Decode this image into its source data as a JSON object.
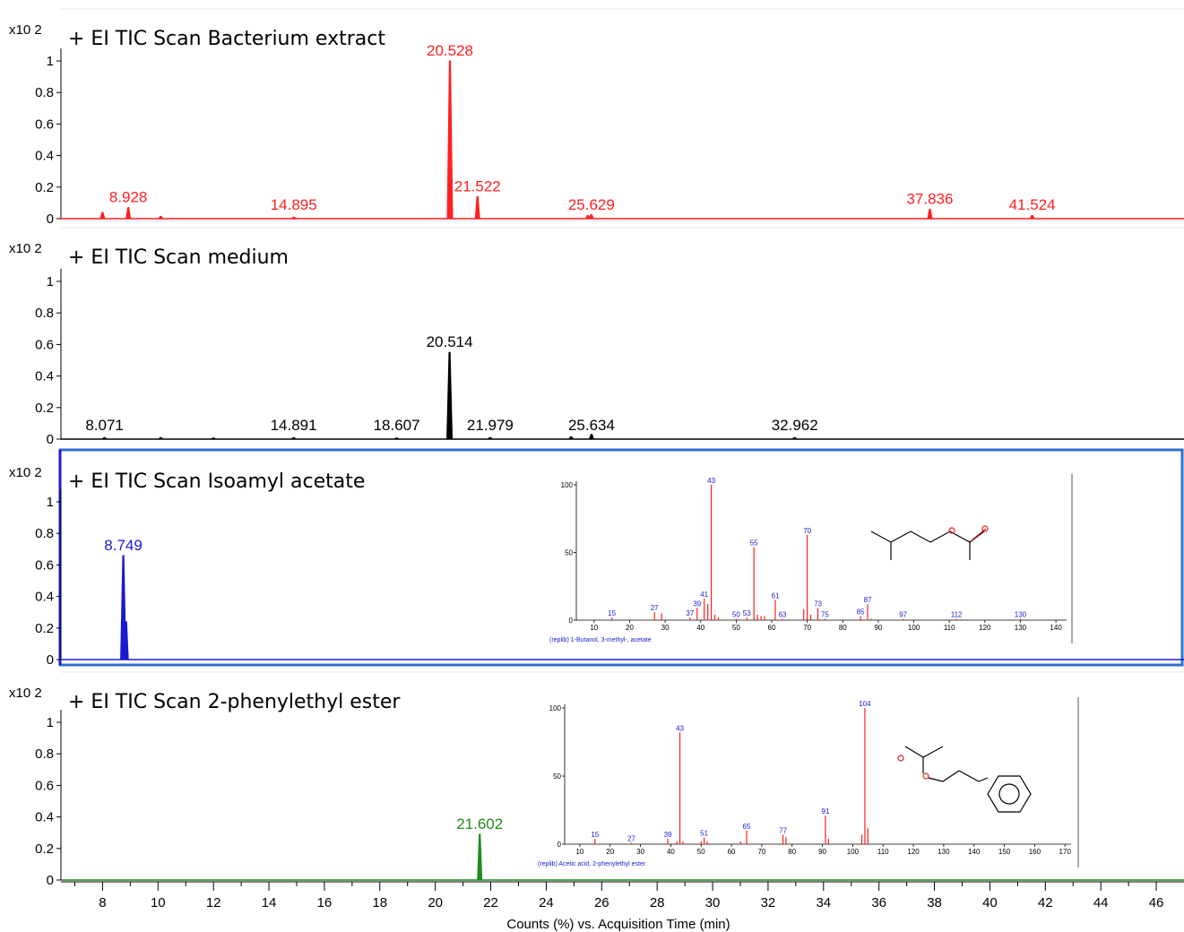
{
  "chart_data": [
    {
      "type": "line",
      "title": "+ EI TIC Scan Bacterium extract",
      "scale_label": "x10 2",
      "color": "#ff2020",
      "ylim": [
        0,
        1.05
      ],
      "yticks": [
        "1",
        "0.8",
        "0.6",
        "0.4",
        "0.2",
        "0"
      ],
      "peaks": [
        {
          "x": 8.0,
          "y": 0.04
        },
        {
          "x": 8.928,
          "y": 0.07
        },
        {
          "x": 10.1,
          "y": 0.015
        },
        {
          "x": 14.895,
          "y": 0.01
        },
        {
          "x": 20.528,
          "y": 1.0
        },
        {
          "x": 21.522,
          "y": 0.14
        },
        {
          "x": 25.5,
          "y": 0.02
        },
        {
          "x": 25.629,
          "y": 0.025
        },
        {
          "x": 37.836,
          "y": 0.06
        },
        {
          "x": 41.524,
          "y": 0.02
        }
      ],
      "labels": [
        {
          "text": "8.928",
          "x": 8.928,
          "y": 0.07
        },
        {
          "text": "14.895",
          "x": 14.895,
          "y": 0.01
        },
        {
          "text": "20.528",
          "x": 20.528,
          "y": 1.0
        },
        {
          "text": "21.522",
          "x": 21.522,
          "y": 0.14
        },
        {
          "text": "25.629",
          "x": 25.629,
          "y": 0.025
        },
        {
          "text": "37.836",
          "x": 37.836,
          "y": 0.06
        },
        {
          "text": "41.524",
          "x": 41.524,
          "y": 0.02
        }
      ]
    },
    {
      "type": "line",
      "title": "+ EI TIC Scan medium",
      "scale_label": "x10 2",
      "color": "#000000",
      "ylim": [
        0,
        1.05
      ],
      "yticks": [
        "1",
        "0.8",
        "0.6",
        "0.4",
        "0.2",
        "0"
      ],
      "peaks": [
        {
          "x": 8.071,
          "y": 0.01
        },
        {
          "x": 10.1,
          "y": 0.01
        },
        {
          "x": 12.0,
          "y": 0.008
        },
        {
          "x": 14.891,
          "y": 0.01
        },
        {
          "x": 18.607,
          "y": 0.008
        },
        {
          "x": 20.514,
          "y": 0.55
        },
        {
          "x": 21.979,
          "y": 0.01
        },
        {
          "x": 24.9,
          "y": 0.015
        },
        {
          "x": 25.634,
          "y": 0.03
        },
        {
          "x": 32.962,
          "y": 0.01
        }
      ],
      "labels": [
        {
          "text": "8.071",
          "x": 8.071,
          "y": 0.01
        },
        {
          "text": "14.891",
          "x": 14.891,
          "y": 0.01
        },
        {
          "text": "18.607",
          "x": 18.607,
          "y": 0.008
        },
        {
          "text": "20.514",
          "x": 20.514,
          "y": 0.55
        },
        {
          "text": "21.979",
          "x": 21.979,
          "y": 0.01
        },
        {
          "text": "25.634",
          "x": 25.634,
          "y": 0.03
        },
        {
          "text": "32.962",
          "x": 32.962,
          "y": 0.01
        }
      ]
    },
    {
      "type": "line",
      "title": "+ EI TIC Scan  Isoamyl acetate",
      "scale_label": "x10 2",
      "color": "#1a1ad0",
      "ylim": [
        0,
        1.05
      ],
      "yticks": [
        "1",
        "0.8",
        "0.6",
        "0.4",
        "0.2",
        "0"
      ],
      "peaks": [
        {
          "x": 8.749,
          "y": 0.66
        },
        {
          "x": 8.85,
          "y": 0.24
        }
      ],
      "labels": [
        {
          "text": "8.749",
          "x": 8.749,
          "y": 0.66
        }
      ],
      "inset": {
        "type": "bar",
        "caption": "(replib) 1-Butanol, 3-methyl-, acetate",
        "xlim": [
          5,
          143
        ],
        "xticks": [
          "10",
          "20",
          "30",
          "40",
          "50",
          "60",
          "70",
          "80",
          "90",
          "100",
          "110",
          "120",
          "130",
          "140"
        ],
        "yticks": [
          "100",
          "50",
          "0"
        ],
        "bars": [
          {
            "mz": 15,
            "i": 2
          },
          {
            "mz": 27,
            "i": 6
          },
          {
            "mz": 29,
            "i": 5
          },
          {
            "mz": 37,
            "i": 2
          },
          {
            "mz": 39,
            "i": 9
          },
          {
            "mz": 41,
            "i": 16
          },
          {
            "mz": 42,
            "i": 12
          },
          {
            "mz": 43,
            "i": 100
          },
          {
            "mz": 44,
            "i": 4
          },
          {
            "mz": 45,
            "i": 2
          },
          {
            "mz": 50,
            "i": 1
          },
          {
            "mz": 53,
            "i": 2
          },
          {
            "mz": 55,
            "i": 54
          },
          {
            "mz": 56,
            "i": 4
          },
          {
            "mz": 57,
            "i": 3
          },
          {
            "mz": 58,
            "i": 3
          },
          {
            "mz": 61,
            "i": 15
          },
          {
            "mz": 63,
            "i": 1
          },
          {
            "mz": 69,
            "i": 8
          },
          {
            "mz": 70,
            "i": 63
          },
          {
            "mz": 71,
            "i": 4
          },
          {
            "mz": 73,
            "i": 9
          },
          {
            "mz": 75,
            "i": 1
          },
          {
            "mz": 85,
            "i": 3
          },
          {
            "mz": 87,
            "i": 12
          },
          {
            "mz": 88,
            "i": 1
          },
          {
            "mz": 97,
            "i": 1
          },
          {
            "mz": 112,
            "i": 1
          },
          {
            "mz": 130,
            "i": 1
          }
        ],
        "bar_labels": [
          {
            "text": "15",
            "mz": 15,
            "i": 2
          },
          {
            "text": "27",
            "mz": 27,
            "i": 6
          },
          {
            "text": "37",
            "mz": 37,
            "i": 2
          },
          {
            "text": "39",
            "mz": 39,
            "i": 9
          },
          {
            "text": "41",
            "mz": 41,
            "i": 16
          },
          {
            "text": "43",
            "mz": 43,
            "i": 100
          },
          {
            "text": "50",
            "mz": 50,
            "i": 1
          },
          {
            "text": "53",
            "mz": 53,
            "i": 2
          },
          {
            "text": "55",
            "mz": 55,
            "i": 54
          },
          {
            "text": "61",
            "mz": 61,
            "i": 15
          },
          {
            "text": "63",
            "mz": 63,
            "i": 1
          },
          {
            "text": "70",
            "mz": 70,
            "i": 63
          },
          {
            "text": "73",
            "mz": 73,
            "i": 9
          },
          {
            "text": "75",
            "mz": 75,
            "i": 1
          },
          {
            "text": "85",
            "mz": 85,
            "i": 3
          },
          {
            "text": "87",
            "mz": 87,
            "i": 12
          },
          {
            "text": "97",
            "mz": 97,
            "i": 1
          },
          {
            "text": "112",
            "mz": 112,
            "i": 1
          },
          {
            "text": "130",
            "mz": 130,
            "i": 1
          }
        ]
      }
    },
    {
      "type": "line",
      "title": "+ EI TIC Scan 2-phenylethyl ester",
      "scale_label": "x10 2",
      "color": "#1f8a1f",
      "ylim": [
        0,
        1.05
      ],
      "yticks": [
        "1",
        "0.8",
        "0.6",
        "0.4",
        "0.2",
        "0"
      ],
      "peaks": [
        {
          "x": 21.602,
          "y": 0.29
        }
      ],
      "labels": [
        {
          "text": "21.602",
          "x": 21.602,
          "y": 0.29
        }
      ],
      "inset": {
        "type": "bar",
        "caption": "(replib) Acetic acid, 2-phenylethyl ester",
        "xlim": [
          5,
          172
        ],
        "xticks": [
          "10",
          "20",
          "30",
          "40",
          "50",
          "60",
          "70",
          "80",
          "90",
          "100",
          "110",
          "120",
          "130",
          "140",
          "150",
          "160",
          "170"
        ],
        "yticks": [
          "100",
          "50",
          "0"
        ],
        "bars": [
          {
            "mz": 15,
            "i": 4
          },
          {
            "mz": 27,
            "i": 1
          },
          {
            "mz": 39,
            "i": 4
          },
          {
            "mz": 42,
            "i": 2
          },
          {
            "mz": 43,
            "i": 82
          },
          {
            "mz": 44,
            "i": 2
          },
          {
            "mz": 50,
            "i": 2
          },
          {
            "mz": 51,
            "i": 5
          },
          {
            "mz": 52,
            "i": 2
          },
          {
            "mz": 63,
            "i": 2
          },
          {
            "mz": 65,
            "i": 10
          },
          {
            "mz": 77,
            "i": 7
          },
          {
            "mz": 78,
            "i": 5
          },
          {
            "mz": 91,
            "i": 21
          },
          {
            "mz": 92,
            "i": 4
          },
          {
            "mz": 103,
            "i": 7
          },
          {
            "mz": 104,
            "i": 100
          },
          {
            "mz": 105,
            "i": 12
          }
        ],
        "bar_labels": [
          {
            "text": "15",
            "mz": 15,
            "i": 4
          },
          {
            "text": "27",
            "mz": 27,
            "i": 1
          },
          {
            "text": "39",
            "mz": 39,
            "i": 4
          },
          {
            "text": "43",
            "mz": 43,
            "i": 82
          },
          {
            "text": "51",
            "mz": 51,
            "i": 5
          },
          {
            "text": "65",
            "mz": 65,
            "i": 10
          },
          {
            "text": "77",
            "mz": 77,
            "i": 7
          },
          {
            "text": "91",
            "mz": 91,
            "i": 21
          },
          {
            "text": "104",
            "mz": 104,
            "i": 100
          }
        ]
      }
    }
  ],
  "shared_x": {
    "xlim": [
      6.5,
      47.0
    ],
    "ticks": [
      8,
      10,
      12,
      14,
      16,
      18,
      20,
      22,
      24,
      26,
      28,
      30,
      32,
      34,
      36,
      38,
      40,
      42,
      44,
      46
    ],
    "tick_labels": [
      "8",
      "10",
      "12",
      "14",
      "16",
      "18",
      "20",
      "22",
      "24",
      "26",
      "28",
      "30",
      "32",
      "34",
      "36",
      "38",
      "40",
      "42",
      "44",
      "46"
    ],
    "xlabel": "Counts (%) vs. Acquisition Time (min)"
  }
}
